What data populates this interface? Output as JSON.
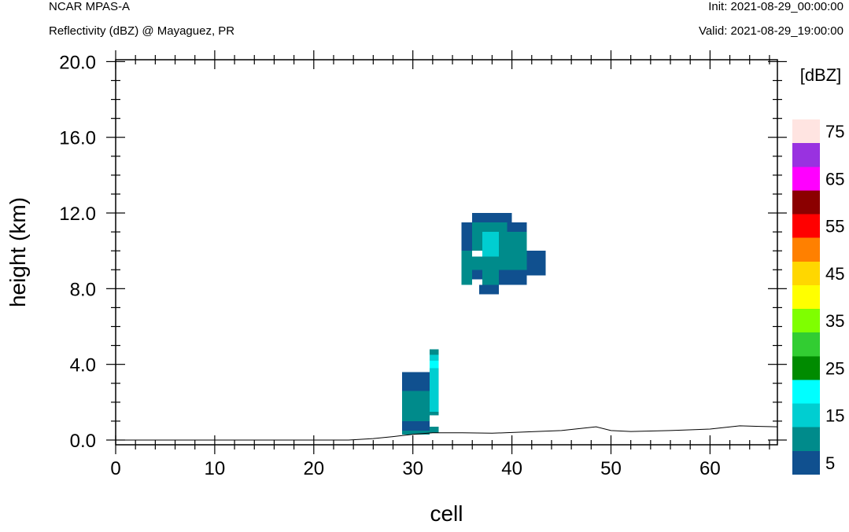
{
  "header": {
    "model": "NCAR MPAS-A",
    "subtitle": "Reflectivity (dBZ) @ Mayaguez, PR",
    "init": "Init: 2021-08-29_00:00:00",
    "valid": "Valid: 2021-08-29_19:00:00"
  },
  "chart_data": {
    "type": "heatmap",
    "title": "Reflectivity (dBZ) @ Mayaguez, PR",
    "xlabel": "cell",
    "ylabel": "height (km)",
    "xlim": [
      0,
      66.8
    ],
    "ylim": [
      -0.25,
      20.1
    ],
    "x_ticks": [
      0,
      10,
      20,
      30,
      40,
      50,
      60
    ],
    "x_tick_labels": [
      "0",
      "10",
      "20",
      "30",
      "40",
      "50",
      "60"
    ],
    "y_ticks": [
      0,
      4,
      8,
      12,
      16,
      20
    ],
    "y_tick_labels": [
      "0.0",
      "4.0",
      "8.0",
      "12.0",
      "16.0",
      "20.0"
    ],
    "colorbar": {
      "unit": "[dBZ]",
      "levels": [
        5,
        10,
        15,
        20,
        25,
        30,
        35,
        40,
        45,
        50,
        55,
        60,
        65,
        70,
        75
      ],
      "labels": [
        "5",
        "15",
        "25",
        "35",
        "45",
        "55",
        "65",
        "75"
      ],
      "colors": [
        "#10508F",
        "#008B8B",
        "#00CED1",
        "#00FFFF",
        "#008B00",
        "#32CD32",
        "#7FFF00",
        "#FFFF00",
        "#FFD700",
        "#FF8000",
        "#FF0000",
        "#8B0000",
        "#FF00FF",
        "#9932E0",
        "#FFE4E1"
      ]
    },
    "terrain": [
      [
        0,
        0
      ],
      [
        23.5,
        0
      ],
      [
        26,
        0.08
      ],
      [
        28,
        0.18
      ],
      [
        30,
        0.3
      ],
      [
        32,
        0.38
      ],
      [
        35,
        0.38
      ],
      [
        38,
        0.36
      ],
      [
        41,
        0.42
      ],
      [
        45,
        0.5
      ],
      [
        48.5,
        0.7
      ],
      [
        50,
        0.5
      ],
      [
        52,
        0.45
      ],
      [
        56,
        0.5
      ],
      [
        60,
        0.58
      ],
      [
        63,
        0.75
      ],
      [
        65,
        0.72
      ],
      [
        66.8,
        0.7
      ]
    ],
    "cells": [
      {
        "x0": 28.9,
        "x1": 31.7,
        "y0": 3.1,
        "y1": 3.6,
        "dbz": 5
      },
      {
        "x0": 28.9,
        "x1": 31.7,
        "y0": 2.6,
        "y1": 3.1,
        "dbz": 5
      },
      {
        "x0": 28.9,
        "x1": 31.7,
        "y0": 1.0,
        "y1": 2.6,
        "dbz": 10
      },
      {
        "x0": 28.9,
        "x1": 31.7,
        "y0": 0.5,
        "y1": 1.0,
        "dbz": 5
      },
      {
        "x0": 28.9,
        "x1": 31.7,
        "y0": 0.3,
        "y1": 0.5,
        "dbz": 10
      },
      {
        "x0": 31.7,
        "x1": 32.6,
        "y0": 4.5,
        "y1": 4.8,
        "dbz": 10
      },
      {
        "x0": 31.7,
        "x1": 32.6,
        "y0": 4.2,
        "y1": 4.5,
        "dbz": 15
      },
      {
        "x0": 31.7,
        "x1": 32.6,
        "y0": 3.8,
        "y1": 4.2,
        "dbz": 20
      },
      {
        "x0": 31.7,
        "x1": 32.6,
        "y0": 1.5,
        "y1": 3.8,
        "dbz": 15
      },
      {
        "x0": 31.7,
        "x1": 32.6,
        "y0": 1.3,
        "y1": 1.5,
        "dbz": 10
      },
      {
        "x0": 31.7,
        "x1": 32.6,
        "y0": 0.4,
        "y1": 0.7,
        "dbz": 10
      },
      {
        "x0": 36.0,
        "x1": 40.0,
        "y0": 11.5,
        "y1": 12.0,
        "dbz": 5
      },
      {
        "x0": 34.9,
        "x1": 36.0,
        "y0": 10.0,
        "y1": 11.5,
        "dbz": 5
      },
      {
        "x0": 36.0,
        "x1": 37.0,
        "y0": 10.0,
        "y1": 11.5,
        "dbz": 10
      },
      {
        "x0": 37.0,
        "x1": 39.5,
        "y0": 11.0,
        "y1": 11.5,
        "dbz": 10
      },
      {
        "x0": 39.5,
        "x1": 41.5,
        "y0": 11.0,
        "y1": 11.5,
        "dbz": 5
      },
      {
        "x0": 37.0,
        "x1": 38.7,
        "y0": 9.7,
        "y1": 11.0,
        "dbz": 15
      },
      {
        "x0": 38.7,
        "x1": 41.5,
        "y0": 10.5,
        "y1": 11.0,
        "dbz": 10
      },
      {
        "x0": 38.7,
        "x1": 41.5,
        "y0": 9.0,
        "y1": 10.5,
        "dbz": 10
      },
      {
        "x0": 41.5,
        "x1": 43.4,
        "y0": 8.7,
        "y1": 10.0,
        "dbz": 5
      },
      {
        "x0": 34.9,
        "x1": 36.0,
        "y0": 8.2,
        "y1": 10.0,
        "dbz": 10
      },
      {
        "x0": 36.0,
        "x1": 38.7,
        "y0": 9.0,
        "y1": 9.7,
        "dbz": 10
      },
      {
        "x0": 36.0,
        "x1": 37.0,
        "y0": 8.5,
        "y1": 9.0,
        "dbz": 5
      },
      {
        "x0": 37.0,
        "x1": 38.7,
        "y0": 8.2,
        "y1": 9.0,
        "dbz": 10
      },
      {
        "x0": 38.7,
        "x1": 41.5,
        "y0": 8.2,
        "y1": 9.0,
        "dbz": 5
      },
      {
        "x0": 36.7,
        "x1": 38.7,
        "y0": 7.7,
        "y1": 8.2,
        "dbz": 5
      }
    ]
  }
}
